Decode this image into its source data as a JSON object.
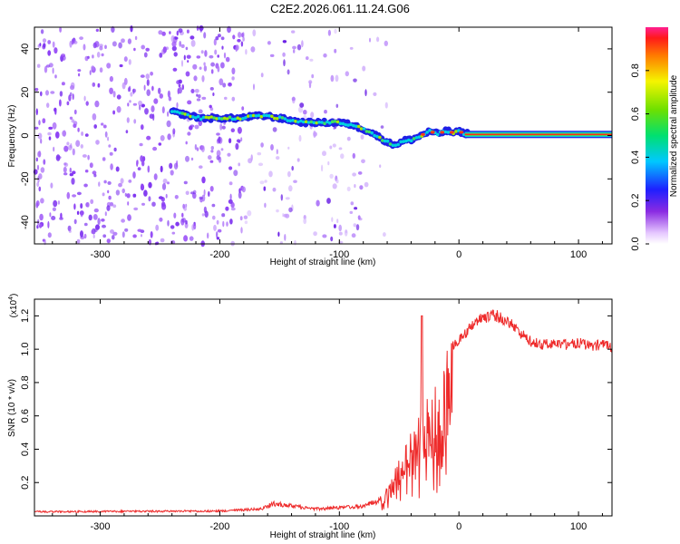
{
  "title": "C2E2.2026.061.11.24.G06",
  "chart_data": [
    {
      "type": "heatmap",
      "name": "spectrogram",
      "xlabel": "Height of straight line (km)",
      "ylabel": "Frequency (Hz)",
      "xlim": [
        -355,
        128
      ],
      "ylim": [
        -50,
        50
      ],
      "xticks": [
        -300,
        -200,
        -100,
        0,
        100
      ],
      "xtick_labels": [
        "-300",
        "-200",
        "-100",
        "0",
        "100"
      ],
      "yticks": [
        -40,
        -20,
        0,
        20,
        40
      ],
      "ytick_labels": [
        "-40",
        "-20",
        "0",
        "20",
        "40"
      ],
      "ridge": {
        "x": [
          -240,
          -232,
          -215,
          -200,
          -185,
          -170,
          -160,
          -150,
          -140,
          -130,
          -120,
          -110,
          -100,
          -90,
          -80,
          -72,
          -66,
          -60,
          -56,
          -52,
          -48,
          -44,
          -40,
          -36,
          -32,
          -28,
          -24,
          -20,
          -16,
          -12,
          -8,
          -4,
          0,
          4,
          8
        ],
        "y": [
          11,
          10,
          8,
          8,
          8,
          9,
          9,
          8,
          7,
          6,
          6,
          6,
          6,
          5,
          3,
          1,
          -1,
          -3,
          -4,
          -4,
          -3,
          -2,
          -2,
          -1,
          0,
          1,
          2,
          1,
          1,
          2,
          2,
          1,
          2,
          1,
          1
        ]
      },
      "steady_band": {
        "x_start": 5,
        "x_end": 128,
        "y": 0.5
      },
      "colorbar": {
        "label": "Normalized spectral amplitude",
        "range": [
          0,
          1
        ],
        "ticks": [
          0.0,
          0.2,
          0.4,
          0.6,
          0.8
        ],
        "tick_labels": [
          "0.0",
          "0.2",
          "0.4",
          "0.6",
          "0.8"
        ]
      }
    },
    {
      "type": "line",
      "name": "snr",
      "xlabel": "Height of straight line (km)",
      "ylabel": "SNR (10 * v/v)",
      "exponent_label": "(x10",
      "exponent_power": "4",
      "exponent_close": ")",
      "xlim": [
        -355,
        128
      ],
      "ylim": [
        0,
        13000
      ],
      "xticks": [
        -300,
        -200,
        -100,
        0,
        100
      ],
      "xtick_labels": [
        "-300",
        "-200",
        "-100",
        "0",
        "100"
      ],
      "yticks": [
        2000,
        4000,
        6000,
        8000,
        10000,
        12000
      ],
      "ytick_labels": [
        "0.2",
        "0.4",
        "0.6",
        "0.8",
        "1.0",
        "1.2"
      ],
      "color": "#ee2a2a",
      "envelope": {
        "x": [
          -355,
          -200,
          -165,
          -155,
          -120,
          -100,
          -80,
          -65,
          -55,
          -50,
          -45,
          -40,
          -35,
          -30,
          -25,
          -20,
          -15,
          -10,
          -5,
          0,
          10,
          20,
          30,
          40,
          50,
          60,
          70,
          80,
          90,
          100,
          110,
          120,
          128
        ],
        "y": [
          300,
          350,
          500,
          900,
          500,
          600,
          700,
          1200,
          2500,
          3500,
          4500,
          5000,
          6500,
          7500,
          7500,
          7800,
          8800,
          10000,
          10500,
          10800,
          11800,
          12300,
          12400,
          12100,
          11400,
          10800,
          10600,
          10700,
          10600,
          10700,
          10500,
          10600,
          10400
        ]
      },
      "spike": {
        "x": -31,
        "y": 12000
      }
    }
  ]
}
